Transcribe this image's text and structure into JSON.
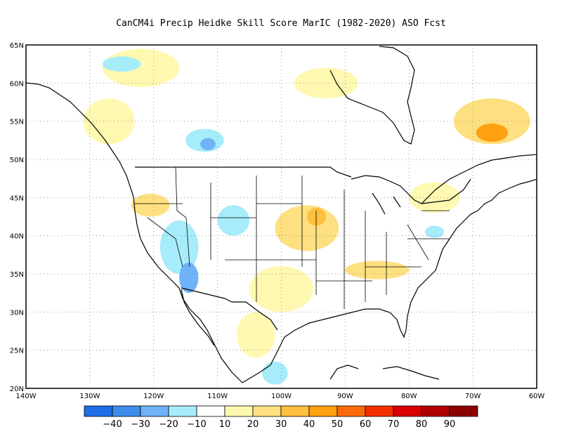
{
  "title": "CanCM4i Precip Heidke Skill Score MarIC (1982-2020) ASO Fcst",
  "map": {
    "lat_range": [
      20,
      65
    ],
    "lon_range": [
      -140,
      -60
    ],
    "lat_ticks": [
      "20N",
      "25N",
      "30N",
      "35N",
      "40N",
      "45N",
      "50N",
      "55N",
      "60N",
      "65N"
    ],
    "lon_ticks": [
      "140W",
      "130W",
      "120W",
      "110W",
      "100W",
      "90W",
      "80W",
      "70W",
      "60W"
    ],
    "gridlines": true,
    "regions": [
      {
        "name": "yukon-positive",
        "lon": -122,
        "lat": 62,
        "rx": 6,
        "ry": 2.5,
        "color": "#fff8b0"
      },
      {
        "name": "bc-positive",
        "lon": -127,
        "lat": 55,
        "rx": 4,
        "ry": 3,
        "color": "#fff8b0"
      },
      {
        "name": "hudson-positive",
        "lon": -93,
        "lat": 60,
        "rx": 5,
        "ry": 2,
        "color": "#fff8b0"
      },
      {
        "name": "quebec-positive",
        "lon": -67,
        "lat": 55,
        "rx": 6,
        "ry": 3,
        "color": "#ffe080"
      },
      {
        "name": "labrador-max",
        "lon": -67,
        "lat": 53.5,
        "rx": 2.5,
        "ry": 1.2,
        "color": "#ffa010"
      },
      {
        "name": "manitoba-negative",
        "lon": -112,
        "lat": 52.5,
        "rx": 3,
        "ry": 1.5,
        "color": "#a6ecfa"
      },
      {
        "name": "manitoba-negative-core",
        "lon": -111.5,
        "lat": 52,
        "rx": 1.2,
        "ry": 0.8,
        "color": "#6fb2f7"
      },
      {
        "name": "oregon-positive",
        "lon": -120.5,
        "lat": 44,
        "rx": 3,
        "ry": 1.5,
        "color": "#ffe080"
      },
      {
        "name": "great-basin-negative",
        "lon": -116,
        "lat": 38.5,
        "rx": 3,
        "ry": 3.5,
        "color": "#a6ecfa"
      },
      {
        "name": "arizona-negative",
        "lon": -114.5,
        "lat": 34.5,
        "rx": 1.5,
        "ry": 2,
        "color": "#6fb2f7"
      },
      {
        "name": "colorado-negative",
        "lon": -107.5,
        "lat": 42,
        "rx": 2.5,
        "ry": 2,
        "color": "#a6ecfa"
      },
      {
        "name": "plains-positive",
        "lon": -96,
        "lat": 41,
        "rx": 5,
        "ry": 3,
        "color": "#ffe080"
      },
      {
        "name": "iowa-core",
        "lon": -94.5,
        "lat": 42.5,
        "rx": 1.5,
        "ry": 1.2,
        "color": "#ffc040"
      },
      {
        "name": "texas-positive",
        "lon": -100,
        "lat": 33,
        "rx": 5,
        "ry": 3,
        "color": "#fff8b0"
      },
      {
        "name": "mexico-positive",
        "lon": -104,
        "lat": 27,
        "rx": 3,
        "ry": 3,
        "color": "#fff8b0"
      },
      {
        "name": "southeast-positive",
        "lon": -85,
        "lat": 35.5,
        "rx": 5,
        "ry": 1.2,
        "color": "#ffe080"
      },
      {
        "name": "mexico-negative",
        "lon": -101,
        "lat": 22,
        "rx": 2,
        "ry": 1.5,
        "color": "#a6ecfa"
      },
      {
        "name": "northeast-positive",
        "lon": -76,
        "lat": 45,
        "rx": 4,
        "ry": 2,
        "color": "#fff8b0"
      },
      {
        "name": "ny-negative",
        "lon": -76,
        "lat": 40.5,
        "rx": 1.5,
        "ry": 0.8,
        "color": "#a6ecfa"
      },
      {
        "name": "alaska-negative",
        "lon": -125,
        "lat": 62.5,
        "rx": 3,
        "ry": 1,
        "color": "#a6ecfa"
      }
    ]
  },
  "colorbar": {
    "colors": [
      "#1e6ee6",
      "#3c8ceb",
      "#6fb2f7",
      "#a6ecfa",
      "#ffffff",
      "#fff8b0",
      "#ffe080",
      "#ffc040",
      "#ffa010",
      "#fb6a08",
      "#f53000",
      "#d80000",
      "#b00000",
      "#8c0000"
    ],
    "labels": [
      "−40",
      "−30",
      "−20",
      "−10",
      "10",
      "20",
      "30",
      "40",
      "50",
      "60",
      "70",
      "80",
      "90"
    ]
  }
}
